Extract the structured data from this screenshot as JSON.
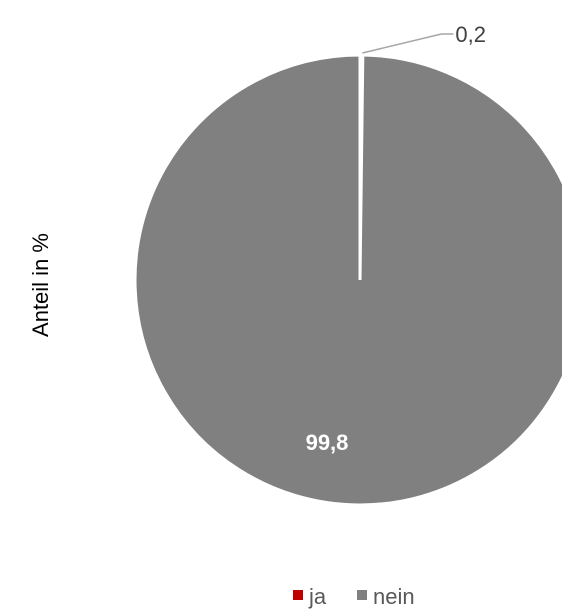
{
  "chart_data": {
    "type": "pie",
    "ylabel": "Anteil in %",
    "categories": [
      "ja",
      "nein"
    ],
    "values": [
      0.2,
      99.8
    ],
    "value_labels": [
      "0,2",
      "99,8"
    ],
    "colors": [
      "#c00000",
      "#808080"
    ],
    "legend": {
      "placement": "bottom",
      "entries": [
        "ja",
        "nein"
      ]
    }
  }
}
